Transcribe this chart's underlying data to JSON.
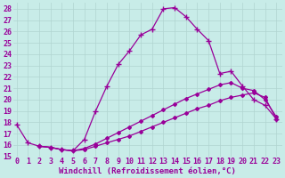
{
  "xlabel": "Windchill (Refroidissement éolien,°C)",
  "bg_color": "#c8ece8",
  "line_color": "#990099",
  "markersize": 2.5,
  "linewidth": 0.9,
  "xlim": [
    -0.3,
    23.5
  ],
  "ylim": [
    15,
    28.5
  ],
  "xticks": [
    0,
    1,
    2,
    3,
    4,
    5,
    6,
    7,
    8,
    9,
    10,
    11,
    12,
    13,
    14,
    15,
    16,
    17,
    18,
    19,
    20,
    21,
    22,
    23
  ],
  "yticks": [
    15,
    16,
    17,
    18,
    19,
    20,
    21,
    22,
    23,
    24,
    25,
    26,
    27,
    28
  ],
  "curve1_x": [
    0,
    1,
    2,
    3,
    4,
    5,
    6,
    7,
    8,
    9,
    10,
    11,
    12,
    13,
    14,
    15,
    16,
    17,
    18,
    19,
    20,
    21,
    22,
    23
  ],
  "curve1_y": [
    17.8,
    16.2,
    15.9,
    15.8,
    15.6,
    15.5,
    16.5,
    19.0,
    21.2,
    23.1,
    24.3,
    25.7,
    26.2,
    28.0,
    28.1,
    27.3,
    26.2,
    25.2,
    22.3,
    22.5,
    21.2,
    20.0,
    19.5,
    18.3
  ],
  "curve2_x": [
    2,
    3,
    4,
    5,
    6,
    7,
    8,
    9,
    10,
    11,
    12,
    13,
    14,
    15,
    16,
    17,
    18,
    19,
    20,
    21,
    22,
    23
  ],
  "curve2_y": [
    15.9,
    15.8,
    15.6,
    15.5,
    15.7,
    16.1,
    16.6,
    17.1,
    17.6,
    18.1,
    18.6,
    19.1,
    19.6,
    20.1,
    20.5,
    20.9,
    21.3,
    21.5,
    21.0,
    20.8,
    20.0,
    18.5
  ],
  "curve3_x": [
    2,
    3,
    4,
    5,
    6,
    7,
    8,
    9,
    10,
    11,
    12,
    13,
    14,
    15,
    16,
    17,
    18,
    19,
    20,
    21,
    22,
    23
  ],
  "curve3_y": [
    15.9,
    15.8,
    15.6,
    15.5,
    15.6,
    15.9,
    16.2,
    16.5,
    16.8,
    17.2,
    17.6,
    18.0,
    18.4,
    18.8,
    19.2,
    19.5,
    19.9,
    20.2,
    20.4,
    20.6,
    20.2,
    18.3
  ],
  "grid_color": "#b0d4d0",
  "xlabel_fontsize": 6.5,
  "tick_fontsize": 6.0
}
